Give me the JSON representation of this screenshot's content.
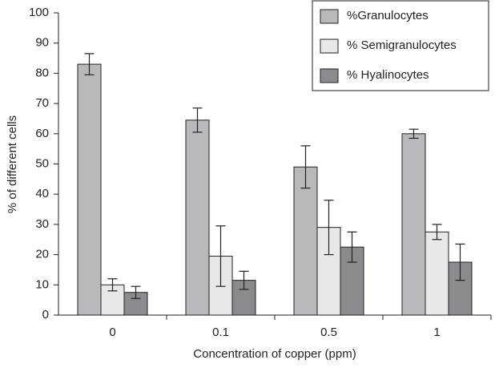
{
  "chart_data": {
    "type": "bar",
    "x_label": "Concentration of copper (ppm)",
    "y_label": "% of different cells",
    "categories": [
      "0",
      "0.1",
      "0.5",
      "1"
    ],
    "series": [
      {
        "name": "%Granulocytes",
        "color": "#b9b9bd",
        "values": [
          83,
          64.5,
          49,
          60
        ],
        "errors": [
          3.5,
          4,
          7,
          1.5
        ]
      },
      {
        "name": "% Semigranulocytes",
        "color": "#e8e8ea",
        "values": [
          10,
          19.5,
          29,
          27.5
        ],
        "errors": [
          2,
          10,
          9,
          2.5
        ]
      },
      {
        "name": "% Hyalinocytes",
        "color": "#8b8b8f",
        "values": [
          7.5,
          11.5,
          22.5,
          17.5
        ],
        "errors": [
          2,
          3,
          5,
          6
        ]
      }
    ],
    "ylim": [
      0,
      100
    ],
    "yticks": [
      0,
      10,
      20,
      30,
      40,
      50,
      60,
      70,
      80,
      90,
      100
    ],
    "legend": "upper right"
  }
}
